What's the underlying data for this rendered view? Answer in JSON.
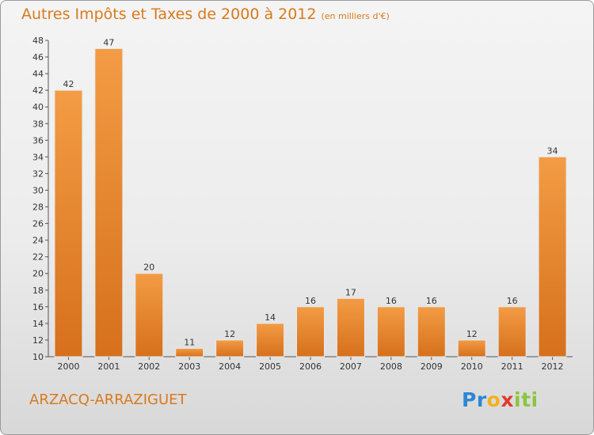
{
  "chart_data": {
    "type": "bar",
    "title": "Autres Impôts et Taxes de 2000 à 2012",
    "subtitle": "(en milliers d'€)",
    "categories": [
      "2000",
      "2001",
      "2002",
      "2003",
      "2004",
      "2005",
      "2006",
      "2007",
      "2008",
      "2009",
      "2010",
      "2011",
      "2012"
    ],
    "values": [
      42,
      47,
      20,
      11,
      12,
      14,
      16,
      17,
      16,
      16,
      12,
      16,
      34
    ],
    "ylim": [
      10,
      48
    ],
    "yticks": [
      10,
      12,
      14,
      16,
      18,
      20,
      22,
      24,
      26,
      28,
      30,
      32,
      34,
      36,
      38,
      40,
      42,
      44,
      46,
      48
    ],
    "grid": false,
    "bar_color": "#f39c45",
    "bar_color_dark": "#d6701c"
  },
  "footer": {
    "commune": "ARZACQ-ARRAZIGUET"
  },
  "logo": {
    "letters": [
      "P",
      "r",
      "o",
      "x",
      "i",
      "t",
      "i"
    ],
    "colors": [
      "#2e86d4",
      "#2e86d4",
      "#f0b21c",
      "#e23b2e",
      "#8bc53f",
      "#8bc53f",
      "#8bc53f"
    ]
  },
  "colors": {
    "accent": "#d97a1d"
  }
}
